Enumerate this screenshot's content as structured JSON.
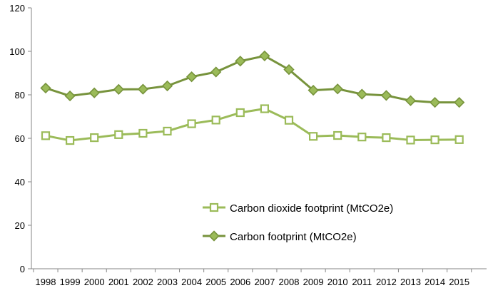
{
  "chart_data": {
    "type": "line",
    "title": "",
    "xlabel": "",
    "ylabel": "",
    "categories": [
      "1998",
      "1999",
      "2000",
      "2001",
      "2002",
      "2003",
      "2004",
      "2005",
      "2006",
      "2007",
      "2008",
      "2009",
      "2010",
      "2011",
      "2012",
      "2013",
      "2014",
      "2015"
    ],
    "ylim": [
      0,
      120
    ],
    "yticks": [
      0,
      20,
      40,
      60,
      80,
      100,
      120
    ],
    "grid": false,
    "legend_position": "lower-center",
    "series": [
      {
        "name": "Carbon dioxide footprint (MtCO2e)",
        "marker": "square-open",
        "color": "#9bbb59",
        "values": [
          61.2,
          59.0,
          60.3,
          61.7,
          62.3,
          63.3,
          66.7,
          68.4,
          71.8,
          73.6,
          68.3,
          60.9,
          61.3,
          60.6,
          60.3,
          59.2,
          59.3,
          59.4
        ]
      },
      {
        "name": "Carbon footprint (MtCO2e)",
        "marker": "diamond-filled",
        "color": "#77933c",
        "values": [
          83.1,
          79.5,
          80.9,
          82.5,
          82.6,
          84.1,
          88.3,
          90.5,
          95.5,
          97.9,
          91.6,
          82.1,
          82.7,
          80.3,
          79.7,
          77.3,
          76.5,
          76.5
        ]
      }
    ]
  }
}
